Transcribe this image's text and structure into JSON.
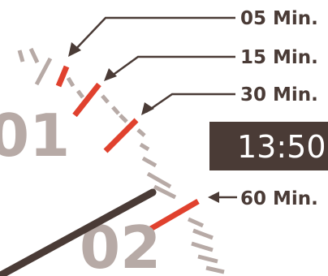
{
  "callouts": [
    {
      "label": "05 Min."
    },
    {
      "label": "15 Min."
    },
    {
      "label": "30 Min."
    },
    {
      "label": "60 Min."
    }
  ],
  "dial": {
    "hour_labels": [
      "01",
      "02"
    ]
  },
  "time_display": {
    "value": "13:50"
  },
  "colors": {
    "text": "#4a3b36",
    "tick": "#b7aaa6",
    "accent": "#e0412e",
    "hand": "#4a3b36",
    "time_box": "#4a3b36",
    "numeral": "#b7aaa6"
  }
}
